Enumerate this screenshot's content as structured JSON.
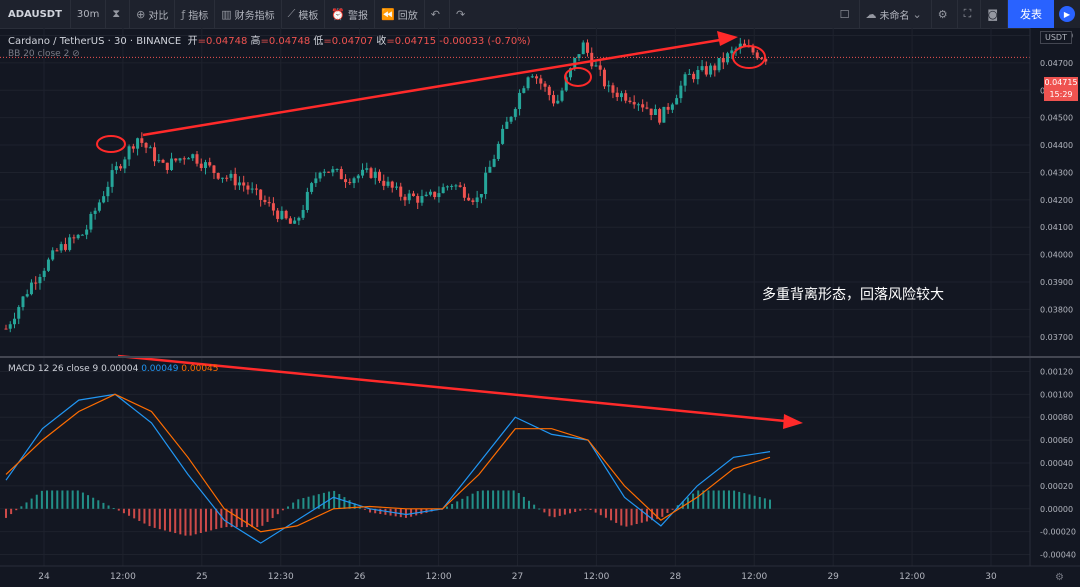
{
  "toolbar": {
    "symbol": "ADAUSDT",
    "interval": "30m",
    "compare": "对比",
    "indicators": "指标",
    "financials": "财务指标",
    "templates": "模板",
    "alert": "警报",
    "replay": "回放",
    "unnamed": "未命名",
    "publish": "发表"
  },
  "legend": {
    "pair": "Cardano / TetherUS",
    "tf": "30",
    "exchange": "BINANCE",
    "open_label": "开",
    "open": "=0.04748",
    "high_label": "高",
    "high": "=0.04748",
    "low_label": "低",
    "low": "=0.04707",
    "close_label": "收",
    "close": "=0.04715",
    "change": "-0.00033 (-0.70%)",
    "bb": "BB 20 close 2"
  },
  "macd_legend": {
    "name": "MACD 12 26 close 9",
    "hist": "0.00004",
    "macd": "0.00049",
    "signal": "0.00045"
  },
  "annotation": "多重背离形态，回落风险较大",
  "price_axis": {
    "currency": "USDT",
    "last_price": "0.04715",
    "countdown": "15:29"
  },
  "chart_data": [
    {
      "type": "candlestick",
      "title": "Cardano / TetherUS, 30, BINANCE",
      "ylim": [
        0.0363,
        0.0482
      ],
      "ticks": [
        "0.04800",
        "0.04700",
        "0.04600",
        "0.04500",
        "0.04400",
        "0.04300",
        "0.04200",
        "0.04100",
        "0.04000",
        "0.03900",
        "0.03800",
        "0.03700"
      ],
      "x_labels": [
        "24",
        "12:00",
        "25",
        "12:30",
        "26",
        "12:00",
        "27",
        "12:00",
        "28",
        "12:00",
        "29",
        "12:00",
        "30"
      ],
      "close_series": [
        0.0373,
        0.039,
        0.0402,
        0.0408,
        0.0428,
        0.0443,
        0.0432,
        0.0437,
        0.043,
        0.0426,
        0.0418,
        0.041,
        0.0432,
        0.0428,
        0.043,
        0.0422,
        0.042,
        0.0426,
        0.042,
        0.0445,
        0.0468,
        0.0455,
        0.0477,
        0.046,
        0.0457,
        0.045,
        0.0465,
        0.0468,
        0.0476,
        0.0472
      ],
      "annotations": [
        {
          "type": "circle",
          "price": 0.0448
        },
        {
          "type": "circle",
          "price": 0.0477
        },
        {
          "type": "circle",
          "price": 0.0482
        },
        {
          "type": "arrow",
          "direction": "up-right"
        }
      ]
    },
    {
      "type": "line",
      "title": "MACD 12 26 close 9",
      "ylim": [
        -0.0005,
        0.0013
      ],
      "ticks": [
        "0.00120",
        "0.00100",
        "0.00080",
        "0.00060",
        "0.00040",
        "0.00020",
        "0.00000",
        "-0.00020",
        "-0.00040"
      ],
      "series": [
        {
          "name": "MACD",
          "color": "#2196f3",
          "values": [
            0.00025,
            0.0007,
            0.00095,
            0.001,
            0.00075,
            0.0003,
            -0.0001,
            -0.0003,
            -0.0001,
            0.0001,
            0.0,
            -5e-05,
            0.0,
            0.0004,
            0.0008,
            0.00065,
            0.0006,
            0.0001,
            -0.00015,
            0.0002,
            0.00045,
            0.0005
          ]
        },
        {
          "name": "Signal",
          "color": "#ff6d00",
          "values": [
            0.0003,
            0.0006,
            0.00085,
            0.001,
            0.00085,
            0.00045,
            0.0,
            -0.0002,
            -0.00015,
            0.0,
            2e-05,
            0.0,
            0.0,
            0.0003,
            0.0007,
            0.0007,
            0.0006,
            0.0002,
            -0.0001,
            0.0001,
            0.00035,
            0.00045
          ]
        }
      ]
    }
  ]
}
